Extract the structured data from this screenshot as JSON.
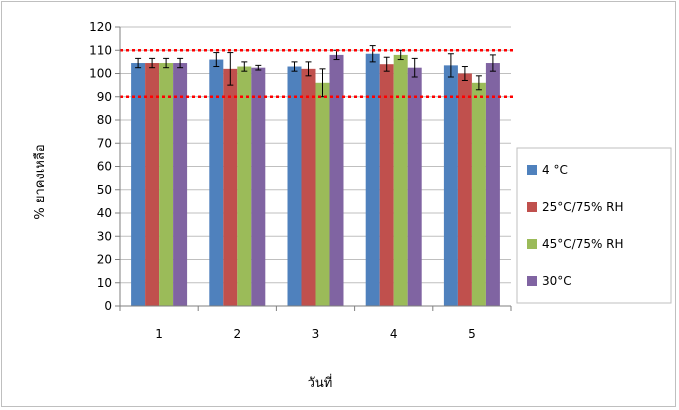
{
  "chart_data": {
    "type": "bar",
    "categories": [
      "1",
      "2",
      "3",
      "4",
      "5"
    ],
    "series": [
      {
        "name": "4 °C",
        "color": "#4f81bd",
        "values": [
          104.5,
          106,
          103,
          108.5,
          103.5
        ],
        "errors": [
          2,
          3,
          2,
          3.5,
          5
        ]
      },
      {
        "name": "25°C/75% RH",
        "color": "#c0504d",
        "values": [
          104.5,
          102,
          102,
          104,
          100
        ],
        "errors": [
          2,
          7,
          3,
          3,
          3
        ]
      },
      {
        "name": "45°C/75% RH",
        "color": "#9bbb59",
        "values": [
          104.5,
          103,
          96,
          108,
          96
        ],
        "errors": [
          2,
          2,
          6,
          2,
          3
        ]
      },
      {
        "name": "30°C",
        "color": "#8064a2",
        "values": [
          104.5,
          102.5,
          108,
          102.5,
          104.5
        ],
        "errors": [
          2,
          1,
          2,
          4,
          3.5
        ]
      }
    ],
    "reference_lines": [
      110,
      90
    ],
    "reference_line_color": "#ff0000",
    "xlabel": "วันที่",
    "ylabel": "% ยาคงเหลือ",
    "ylim": [
      0,
      120
    ],
    "yticks": [
      "0",
      "10",
      "20",
      "30",
      "40",
      "50",
      "60",
      "70",
      "80",
      "90",
      "100",
      "110",
      "120"
    ],
    "grid": true,
    "legend_position": "right"
  }
}
